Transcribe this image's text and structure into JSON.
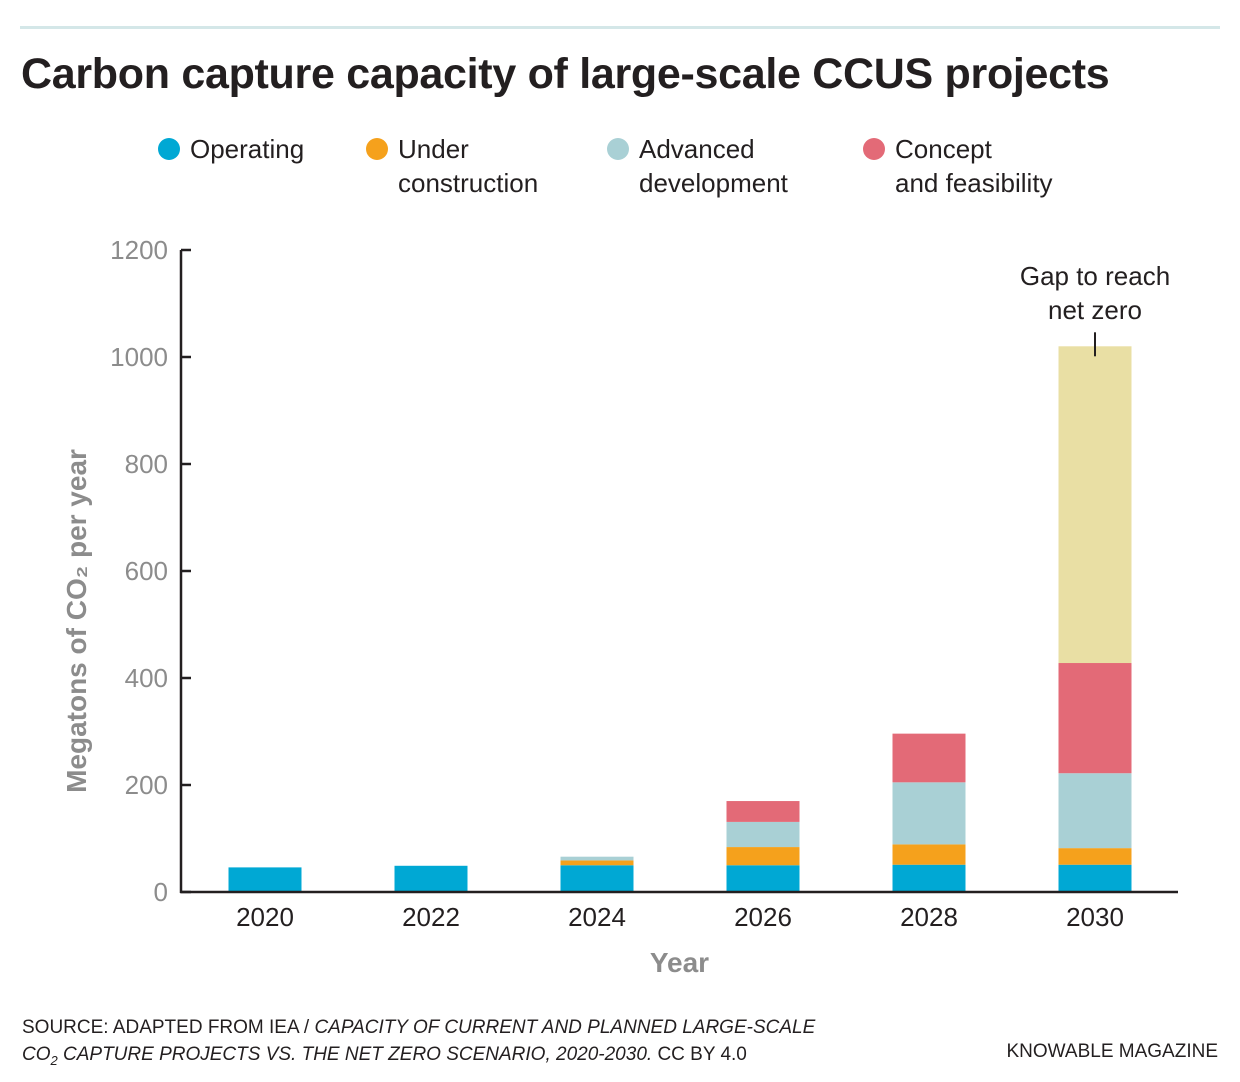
{
  "header": {
    "title": "Carbon capture capacity of large-scale CCUS projects"
  },
  "legend": [
    {
      "label": "Operating",
      "color": "#00a8d4"
    },
    {
      "label": "Under\nconstruction",
      "color": "#f5a11c"
    },
    {
      "label": "Advanced\ndevelopment",
      "color": "#a9d0d5"
    },
    {
      "label": "Concept\nand feasibility",
      "color": "#e36a77"
    }
  ],
  "chart_data": {
    "type": "bar",
    "stacked": true,
    "title": "Carbon capture capacity of large-scale CCUS projects",
    "xlabel": "Year",
    "ylabel": "Megatons of CO₂ per year",
    "ylim": [
      0,
      1200
    ],
    "yticks": [
      0,
      200,
      400,
      600,
      800,
      1000,
      1200
    ],
    "grid": false,
    "legend_position": "top",
    "categories": [
      "2020",
      "2022",
      "2024",
      "2026",
      "2028",
      "2030"
    ],
    "series": [
      {
        "name": "Operating",
        "color": "#00a8d4",
        "values": [
          46,
          49,
          50,
          50,
          51,
          51
        ]
      },
      {
        "name": "Under construction",
        "color": "#f5a11c",
        "values": [
          0,
          0,
          9,
          34,
          38,
          31
        ]
      },
      {
        "name": "Advanced development",
        "color": "#a9d0d5",
        "values": [
          0,
          0,
          7,
          47,
          116,
          140
        ]
      },
      {
        "name": "Concept and feasibility",
        "color": "#e36a77",
        "values": [
          0,
          0,
          0,
          39,
          91,
          206
        ]
      },
      {
        "name": "Gap to reach net zero",
        "color": "#e9dfa4",
        "values": [
          0,
          0,
          0,
          0,
          0,
          592
        ]
      }
    ],
    "annotations": [
      {
        "text_lines": [
          "Gap to reach",
          "net zero"
        ],
        "category": "2030",
        "points_to": "Gap to reach net zero"
      }
    ]
  },
  "footer": {
    "source_prefix": "SOURCE: ADAPTED FROM IEA / ",
    "source_italic_1": "CAPACITY OF CURRENT AND PLANNED LARGE-SCALE",
    "source_co2": "CO",
    "source_sub": "2",
    "source_italic_2": " CAPTURE PROJECTS VS. THE NET ZERO SCENARIO, 2020-2030.",
    "source_license": " CC BY 4.0",
    "credit": "KNOWABLE MAGAZINE"
  }
}
